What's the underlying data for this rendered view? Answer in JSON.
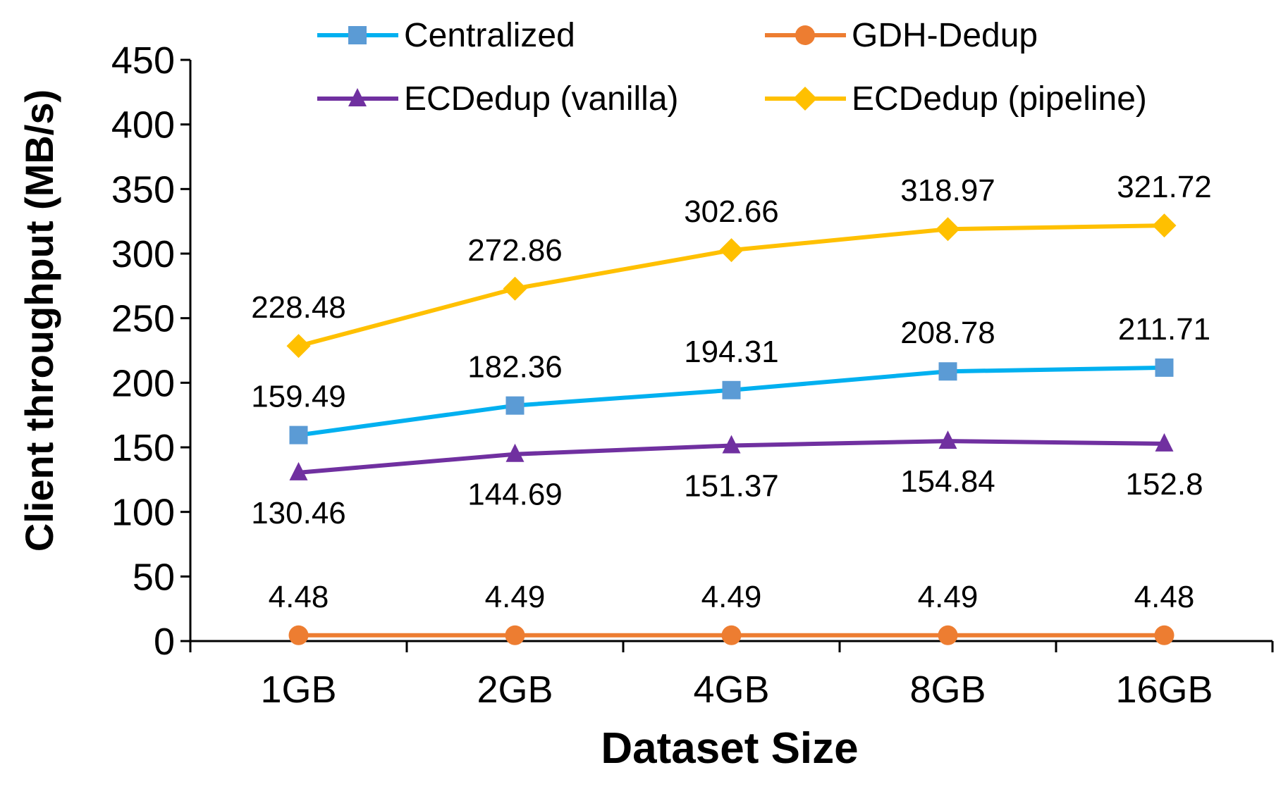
{
  "chart_data": {
    "type": "line",
    "title": "",
    "xlabel": "Dataset Size",
    "ylabel": "Client throughput (MB/s)",
    "categories": [
      "1GB",
      "2GB",
      "4GB",
      "8GB",
      "16GB"
    ],
    "ylim": [
      0,
      450
    ],
    "yticks": [
      0,
      50,
      100,
      150,
      200,
      250,
      300,
      350,
      400,
      450
    ],
    "grid": false,
    "legend_position": "top",
    "series": [
      {
        "name": "Centralized",
        "marker": "square",
        "color": "#00B0F0",
        "marker_color": "#5B9BD5",
        "values": [
          159.49,
          182.36,
          194.31,
          208.78,
          211.71
        ],
        "labels": [
          "159.49",
          "182.36",
          "194.31",
          "208.78",
          "211.71"
        ],
        "label_position": "above"
      },
      {
        "name": "GDH-Dedup",
        "marker": "circle",
        "color": "#ED7D31",
        "marker_color": "#ED7D31",
        "values": [
          4.48,
          4.49,
          4.49,
          4.49,
          4.48
        ],
        "labels": [
          "4.48",
          "4.49",
          "4.49",
          "4.49",
          "4.48"
        ],
        "label_position": "above"
      },
      {
        "name": "ECDedup (vanilla)",
        "marker": "triangle",
        "color": "#7030A0",
        "marker_color": "#7030A0",
        "values": [
          130.46,
          144.69,
          151.37,
          154.84,
          152.8
        ],
        "labels": [
          "130.46",
          "144.69",
          "151.37",
          "154.84",
          "152.8"
        ],
        "label_position": "below"
      },
      {
        "name": "ECDedup (pipeline)",
        "marker": "diamond",
        "color": "#FFC000",
        "marker_color": "#FFC000",
        "values": [
          228.48,
          272.86,
          302.66,
          318.97,
          321.72
        ],
        "labels": [
          "228.48",
          "272.86",
          "302.66",
          "318.97",
          "321.72"
        ],
        "label_position": "above"
      }
    ]
  }
}
